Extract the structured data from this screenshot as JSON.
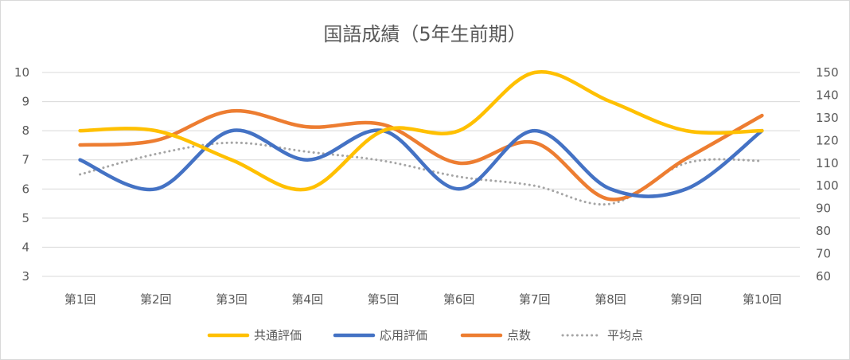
{
  "chart_data": {
    "type": "line",
    "title": "国語成績（5年生前期）",
    "categories": [
      "第1回",
      "第2回",
      "第3回",
      "第4回",
      "第5回",
      "第6回",
      "第7回",
      "第8回",
      "第9回",
      "第10回"
    ],
    "y_left": {
      "ylim": [
        3,
        10
      ],
      "ticks": [
        "3",
        "4",
        "5",
        "6",
        "7",
        "8",
        "9",
        "10"
      ]
    },
    "y_right": {
      "ylim": [
        60,
        150
      ],
      "ticks": [
        "60",
        "70",
        "80",
        "90",
        "100",
        "110",
        "120",
        "130",
        "140",
        "150"
      ]
    },
    "grid": true,
    "legend_position": "bottom",
    "series": [
      {
        "name": "共通評価",
        "axis": "left",
        "color": "#FFC000",
        "style": "solid",
        "values": [
          8,
          8,
          7,
          6,
          8,
          8,
          10,
          9,
          8,
          8
        ]
      },
      {
        "name": "応用評価",
        "axis": "left",
        "color": "#4472C4",
        "style": "solid",
        "values": [
          7,
          6,
          8,
          7,
          8,
          6,
          8,
          6,
          6,
          8
        ]
      },
      {
        "name": "点数",
        "axis": "right",
        "color": "#ED7D31",
        "style": "solid",
        "values": [
          118,
          120,
          133,
          126,
          127,
          110,
          119,
          94,
          112,
          131
        ]
      },
      {
        "name": "平均点",
        "axis": "right",
        "color": "#A5A5A5",
        "style": "dotted",
        "values": [
          105,
          114,
          119,
          115,
          111,
          104,
          100,
          92,
          110,
          111
        ]
      }
    ]
  }
}
